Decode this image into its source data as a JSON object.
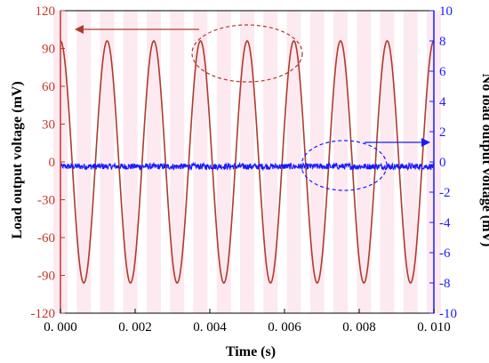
{
  "chart_data": {
    "type": "line",
    "title": "",
    "xlabel": "Time (s)",
    "ylabel_left": "Load output voltage (mV)",
    "ylabel_right": "No load output voltage (mV)",
    "xlim": [
      0,
      0.01
    ],
    "ylim_left": [
      -120,
      120
    ],
    "ylim_right": [
      -10,
      10
    ],
    "x_ticks": [
      "0. 000",
      "0. 002",
      "0. 004",
      "0. 006",
      "0. 008",
      "0. 010"
    ],
    "y_left_ticks": [
      "120",
      "90",
      "60",
      "30",
      "0",
      "-30",
      "-60",
      "-90",
      "-120"
    ],
    "y_right_ticks": [
      "10",
      "8",
      "6",
      "4",
      "2",
      "0",
      "-2",
      "-4",
      "-6",
      "-8",
      "-10"
    ],
    "grid": false,
    "series": [
      {
        "axis": "left",
        "color": "#b03a2e",
        "shape": "sine",
        "frequency_hz": 800,
        "amplitude_mv": 96,
        "offset_mv": 0,
        "phase_at_start": "positive peak"
      },
      {
        "axis": "right",
        "color": "#1a1aff",
        "shape": "noise",
        "mean_mv": -0.3,
        "noise_amplitude_mv": 0.2
      }
    ],
    "annotations": [
      {
        "type": "ellipse-with-arrow",
        "color": "#b03a2e",
        "style": "dashed",
        "points_to": "left axis",
        "around_series": 0
      },
      {
        "type": "ellipse-with-arrow",
        "color": "#1a1aff",
        "style": "dashed",
        "points_to": "right axis",
        "around_series": 1
      }
    ]
  }
}
